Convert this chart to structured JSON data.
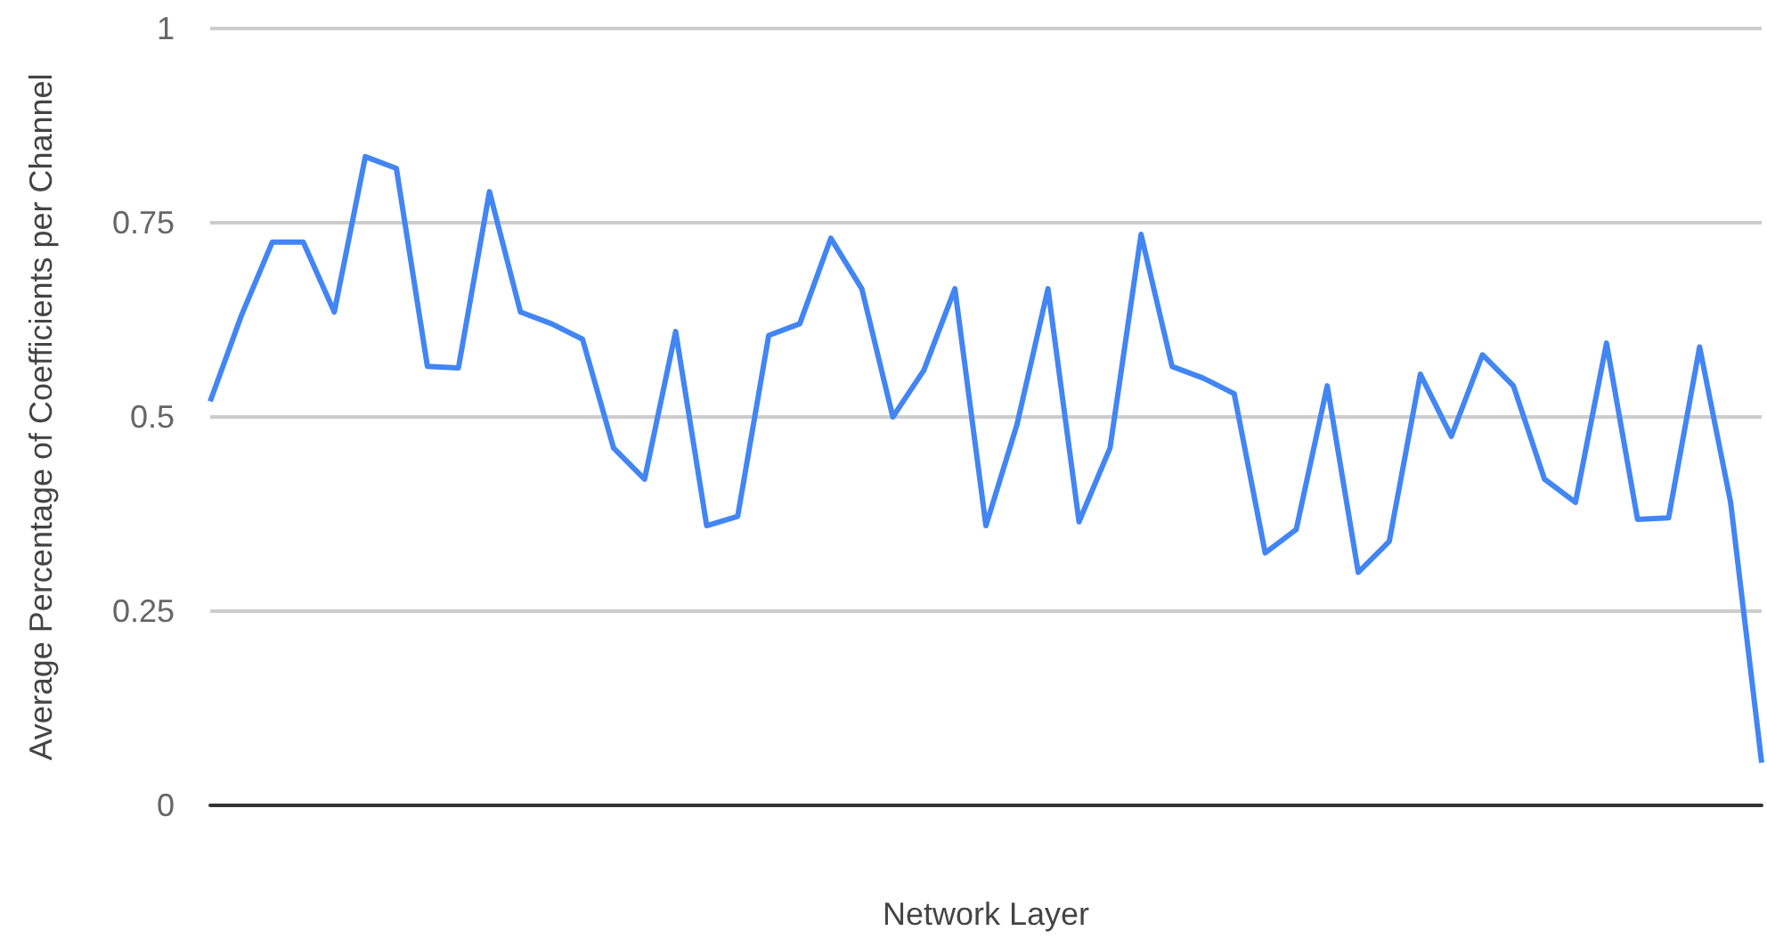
{
  "chart_data": {
    "type": "line",
    "xlabel": "Network Layer",
    "ylabel": "Average Percentage of Coefficients per Channel",
    "categories": [
      null,
      null,
      null,
      null,
      null,
      null,
      null,
      null,
      null,
      null,
      null,
      null,
      null,
      null,
      null,
      null,
      null,
      null,
      null,
      null,
      null,
      null,
      null,
      null,
      null,
      null,
      null,
      null,
      null,
      null,
      null,
      null,
      null,
      null,
      null,
      null,
      null,
      null,
      null,
      null,
      null,
      null,
      null,
      null,
      null,
      null,
      null,
      null,
      null,
      null,
      null
    ],
    "series": [
      {
        "color": "#4285f4",
        "values": [
          0.52,
          0.63,
          0.725,
          0.725,
          0.635,
          0.835,
          0.82,
          0.565,
          0.563,
          0.79,
          0.635,
          0.62,
          0.6,
          0.46,
          0.42,
          0.61,
          0.36,
          0.372,
          0.605,
          0.62,
          0.73,
          0.665,
          0.5,
          0.56,
          0.665,
          0.36,
          0.49,
          0.665,
          0.365,
          0.46,
          0.735,
          0.565,
          0.55,
          0.53,
          0.325,
          0.355,
          0.54,
          0.3,
          0.34,
          0.555,
          0.475,
          0.58,
          0.54,
          0.42,
          0.39,
          0.595,
          0.368,
          0.37,
          0.59,
          0.39,
          0.055
        ]
      }
    ],
    "ylim": [
      0,
      1
    ],
    "yticks": [
      0,
      {
        "value": 0.25,
        "label": "0.25"
      },
      {
        "value": 0.5,
        "label": "0.5"
      },
      {
        "value": 0.75,
        "label": "0.75"
      },
      1
    ],
    "grid": "y",
    "marker": "none",
    "line_style": "solid"
  }
}
